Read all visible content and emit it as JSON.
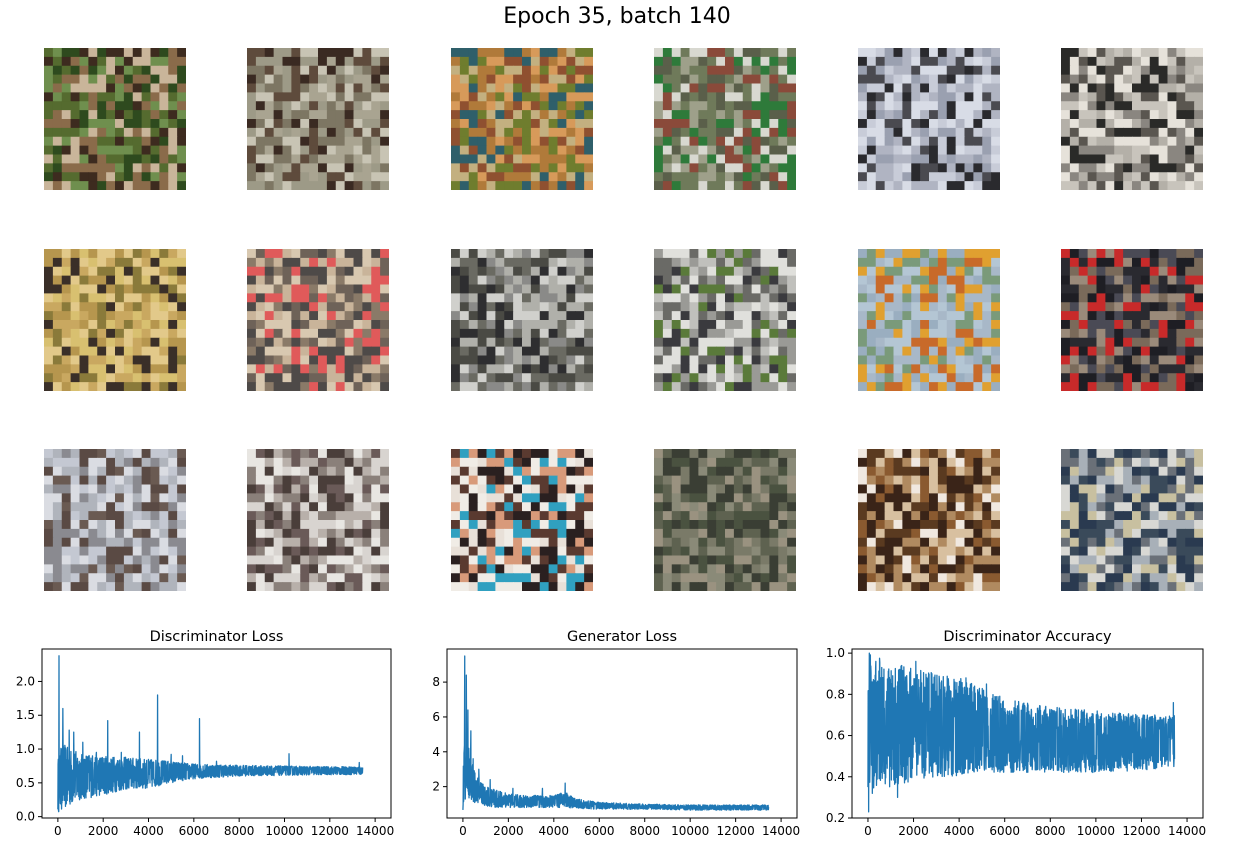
{
  "figure_title": "Epoch 35, batch 140",
  "samples": {
    "rows": 3,
    "cols": 6,
    "palettes": [
      [
        "#556b2f",
        "#2e4a1e",
        "#8a6b4a",
        "#c9b59a",
        "#3d2b1f",
        "#6f8f4e"
      ],
      [
        "#a9a491",
        "#7d7663",
        "#3a2a22",
        "#c8c4b4",
        "#5e4b3c",
        "#9d9a87"
      ],
      [
        "#b07a3a",
        "#6f7d2e",
        "#2f5f6a",
        "#d79a5a",
        "#8f5030",
        "#c3b080"
      ],
      [
        "#6f7a5a",
        "#2e7a3a",
        "#d8d8d0",
        "#5a5f4a",
        "#8a4a3a",
        "#9ea08a"
      ],
      [
        "#c8ccd8",
        "#2a2a2e",
        "#9aa0b0",
        "#d8dce6",
        "#4a4a50",
        "#b0b4c2"
      ],
      [
        "#c8c4bc",
        "#2a2a28",
        "#e6e2da",
        "#8a8680",
        "#5a5650",
        "#b4b0a8"
      ],
      [
        "#c9a860",
        "#e2c98a",
        "#3a2f28",
        "#8a7a3a",
        "#d8c070",
        "#b6964e"
      ],
      [
        "#8a7a68",
        "#c9b49a",
        "#4e4a48",
        "#d8c8b0",
        "#e05a5a",
        "#6e6258"
      ],
      [
        "#8a8a88",
        "#d0d0cc",
        "#2e2e30",
        "#6a6a62",
        "#b0b0aa",
        "#4a4a44"
      ],
      [
        "#c0c0bc",
        "#3a3a3e",
        "#5a7a3a",
        "#9a9a96",
        "#e0e0dc",
        "#6a6a66"
      ],
      [
        "#9aaec0",
        "#b4c6d4",
        "#c86a2a",
        "#e0a030",
        "#7a9a7a",
        "#a8b8c8"
      ],
      [
        "#2a2a30",
        "#4a4a55",
        "#c82a2a",
        "#7a6a5a",
        "#1e1e24",
        "#9a8a7a"
      ],
      [
        "#c4c8d2",
        "#8a8a90",
        "#5a4a44",
        "#dadce2",
        "#6a5a52",
        "#b0b4bc"
      ],
      [
        "#d8d4d0",
        "#6a5a58",
        "#e8e6e2",
        "#4a3e3a",
        "#b8b0aa",
        "#8a807a"
      ],
      [
        "#e8e0d8",
        "#2a2020",
        "#d89a7a",
        "#30a0c0",
        "#5a3a30",
        "#f0ece6"
      ],
      [
        "#4a5240",
        "#7a7a68",
        "#3a3e34",
        "#8a8a78",
        "#5e6250",
        "#9a9280"
      ],
      [
        "#5a3a20",
        "#d8c0a0",
        "#8a5a30",
        "#f0e8e0",
        "#3a2418",
        "#b08a60"
      ],
      [
        "#a8b0b8",
        "#3a4a5a",
        "#d8d8d4",
        "#6a7078",
        "#2a3a50",
        "#c8c0a0"
      ]
    ]
  },
  "chart_data": [
    {
      "type": "line",
      "title": "Discriminator Loss",
      "xlabel": "",
      "ylabel": "",
      "xlim": [
        -700,
        14700
      ],
      "ylim": [
        -0.02,
        2.48
      ],
      "xticks": [
        0,
        2000,
        4000,
        6000,
        8000,
        10000,
        12000,
        14000
      ],
      "yticks": [
        0.0,
        0.5,
        1.0,
        1.5,
        2.0
      ],
      "ytick_labels": [
        "0.0",
        "0.5",
        "1.0",
        "1.5",
        "2.0"
      ],
      "color": "#1f77b4",
      "x_max": 13450,
      "envelope": {
        "x": [
          0,
          200,
          500,
          1000,
          2000,
          3000,
          4000,
          5000,
          6000,
          8000,
          10000,
          12000,
          13450
        ],
        "lo": [
          0.06,
          0.1,
          0.15,
          0.25,
          0.32,
          0.4,
          0.42,
          0.5,
          0.56,
          0.6,
          0.61,
          0.62,
          0.62
        ],
        "hi": [
          0.85,
          1.1,
          1.0,
          0.95,
          0.9,
          0.88,
          0.85,
          0.82,
          0.78,
          0.76,
          0.75,
          0.74,
          0.74
        ]
      },
      "spikes": [
        {
          "x": 50,
          "y": 2.38
        },
        {
          "x": 220,
          "y": 1.6
        },
        {
          "x": 500,
          "y": 1.28
        },
        {
          "x": 700,
          "y": 1.25
        },
        {
          "x": 1100,
          "y": 1.1
        },
        {
          "x": 1700,
          "y": 0.95
        },
        {
          "x": 2200,
          "y": 1.42
        },
        {
          "x": 2800,
          "y": 0.95
        },
        {
          "x": 3600,
          "y": 1.25
        },
        {
          "x": 4400,
          "y": 1.8
        },
        {
          "x": 5000,
          "y": 0.92
        },
        {
          "x": 5500,
          "y": 0.9
        },
        {
          "x": 6250,
          "y": 1.45
        },
        {
          "x": 7000,
          "y": 0.82
        },
        {
          "x": 10200,
          "y": 0.93
        },
        {
          "x": 13300,
          "y": 0.8
        }
      ]
    },
    {
      "type": "line",
      "title": "Generator Loss",
      "xlabel": "",
      "ylabel": "",
      "xlim": [
        -700,
        14700
      ],
      "ylim": [
        0.2,
        9.9
      ],
      "xticks": [
        0,
        2000,
        4000,
        6000,
        8000,
        10000,
        12000,
        14000
      ],
      "yticks": [
        2,
        4,
        6,
        8
      ],
      "ytick_labels": [
        "2",
        "4",
        "6",
        "8"
      ],
      "color": "#1f77b4",
      "x_max": 13450,
      "envelope": {
        "x": [
          0,
          100,
          300,
          600,
          1000,
          1500,
          2000,
          3000,
          4000,
          4500,
          5000,
          6000,
          8000,
          10000,
          12000,
          13450
        ],
        "lo": [
          0.5,
          1.0,
          1.2,
          1.0,
          0.9,
          0.8,
          0.8,
          0.8,
          0.8,
          0.8,
          0.75,
          0.7,
          0.7,
          0.65,
          0.65,
          0.65
        ],
        "hi": [
          3.0,
          6.0,
          4.0,
          2.6,
          2.0,
          1.8,
          1.6,
          1.5,
          1.5,
          1.7,
          1.3,
          1.1,
          1.0,
          0.95,
          0.95,
          0.95
        ]
      },
      "spikes": [
        {
          "x": 80,
          "y": 9.5
        },
        {
          "x": 150,
          "y": 8.4
        },
        {
          "x": 220,
          "y": 6.4
        },
        {
          "x": 350,
          "y": 5.2
        },
        {
          "x": 450,
          "y": 3.6
        },
        {
          "x": 700,
          "y": 3.0
        },
        {
          "x": 1200,
          "y": 2.4
        },
        {
          "x": 2200,
          "y": 1.9
        },
        {
          "x": 3500,
          "y": 1.9
        },
        {
          "x": 4500,
          "y": 2.2
        }
      ]
    },
    {
      "type": "line",
      "title": "Discriminator Accuracy",
      "xlabel": "",
      "ylabel": "",
      "xlim": [
        -700,
        14700
      ],
      "ylim": [
        0.2,
        1.02
      ],
      "xticks": [
        0,
        2000,
        4000,
        6000,
        8000,
        10000,
        12000,
        14000
      ],
      "yticks": [
        0.2,
        0.4,
        0.6,
        0.8,
        1.0
      ],
      "ytick_labels": [
        "0.2",
        "0.4",
        "0.6",
        "0.8",
        "1.0"
      ],
      "color": "#1f77b4",
      "x_max": 13450,
      "envelope": {
        "x": [
          0,
          500,
          1000,
          2000,
          3000,
          4000,
          5000,
          6000,
          8000,
          10000,
          12000,
          13450
        ],
        "lo": [
          0.3,
          0.35,
          0.35,
          0.38,
          0.4,
          0.4,
          0.42,
          0.42,
          0.42,
          0.42,
          0.43,
          0.45
        ],
        "hi": [
          1.0,
          0.98,
          0.95,
          0.93,
          0.9,
          0.88,
          0.83,
          0.78,
          0.74,
          0.72,
          0.7,
          0.7
        ]
      },
      "spikes": [
        {
          "x": 30,
          "y": 0.23
        },
        {
          "x": 60,
          "y": 1.0
        },
        {
          "x": 1300,
          "y": 0.3
        },
        {
          "x": 2100,
          "y": 0.96
        },
        {
          "x": 4300,
          "y": 0.88
        },
        {
          "x": 5200,
          "y": 0.85
        },
        {
          "x": 13400,
          "y": 0.76
        },
        {
          "x": 13420,
          "y": 0.45
        }
      ]
    }
  ]
}
